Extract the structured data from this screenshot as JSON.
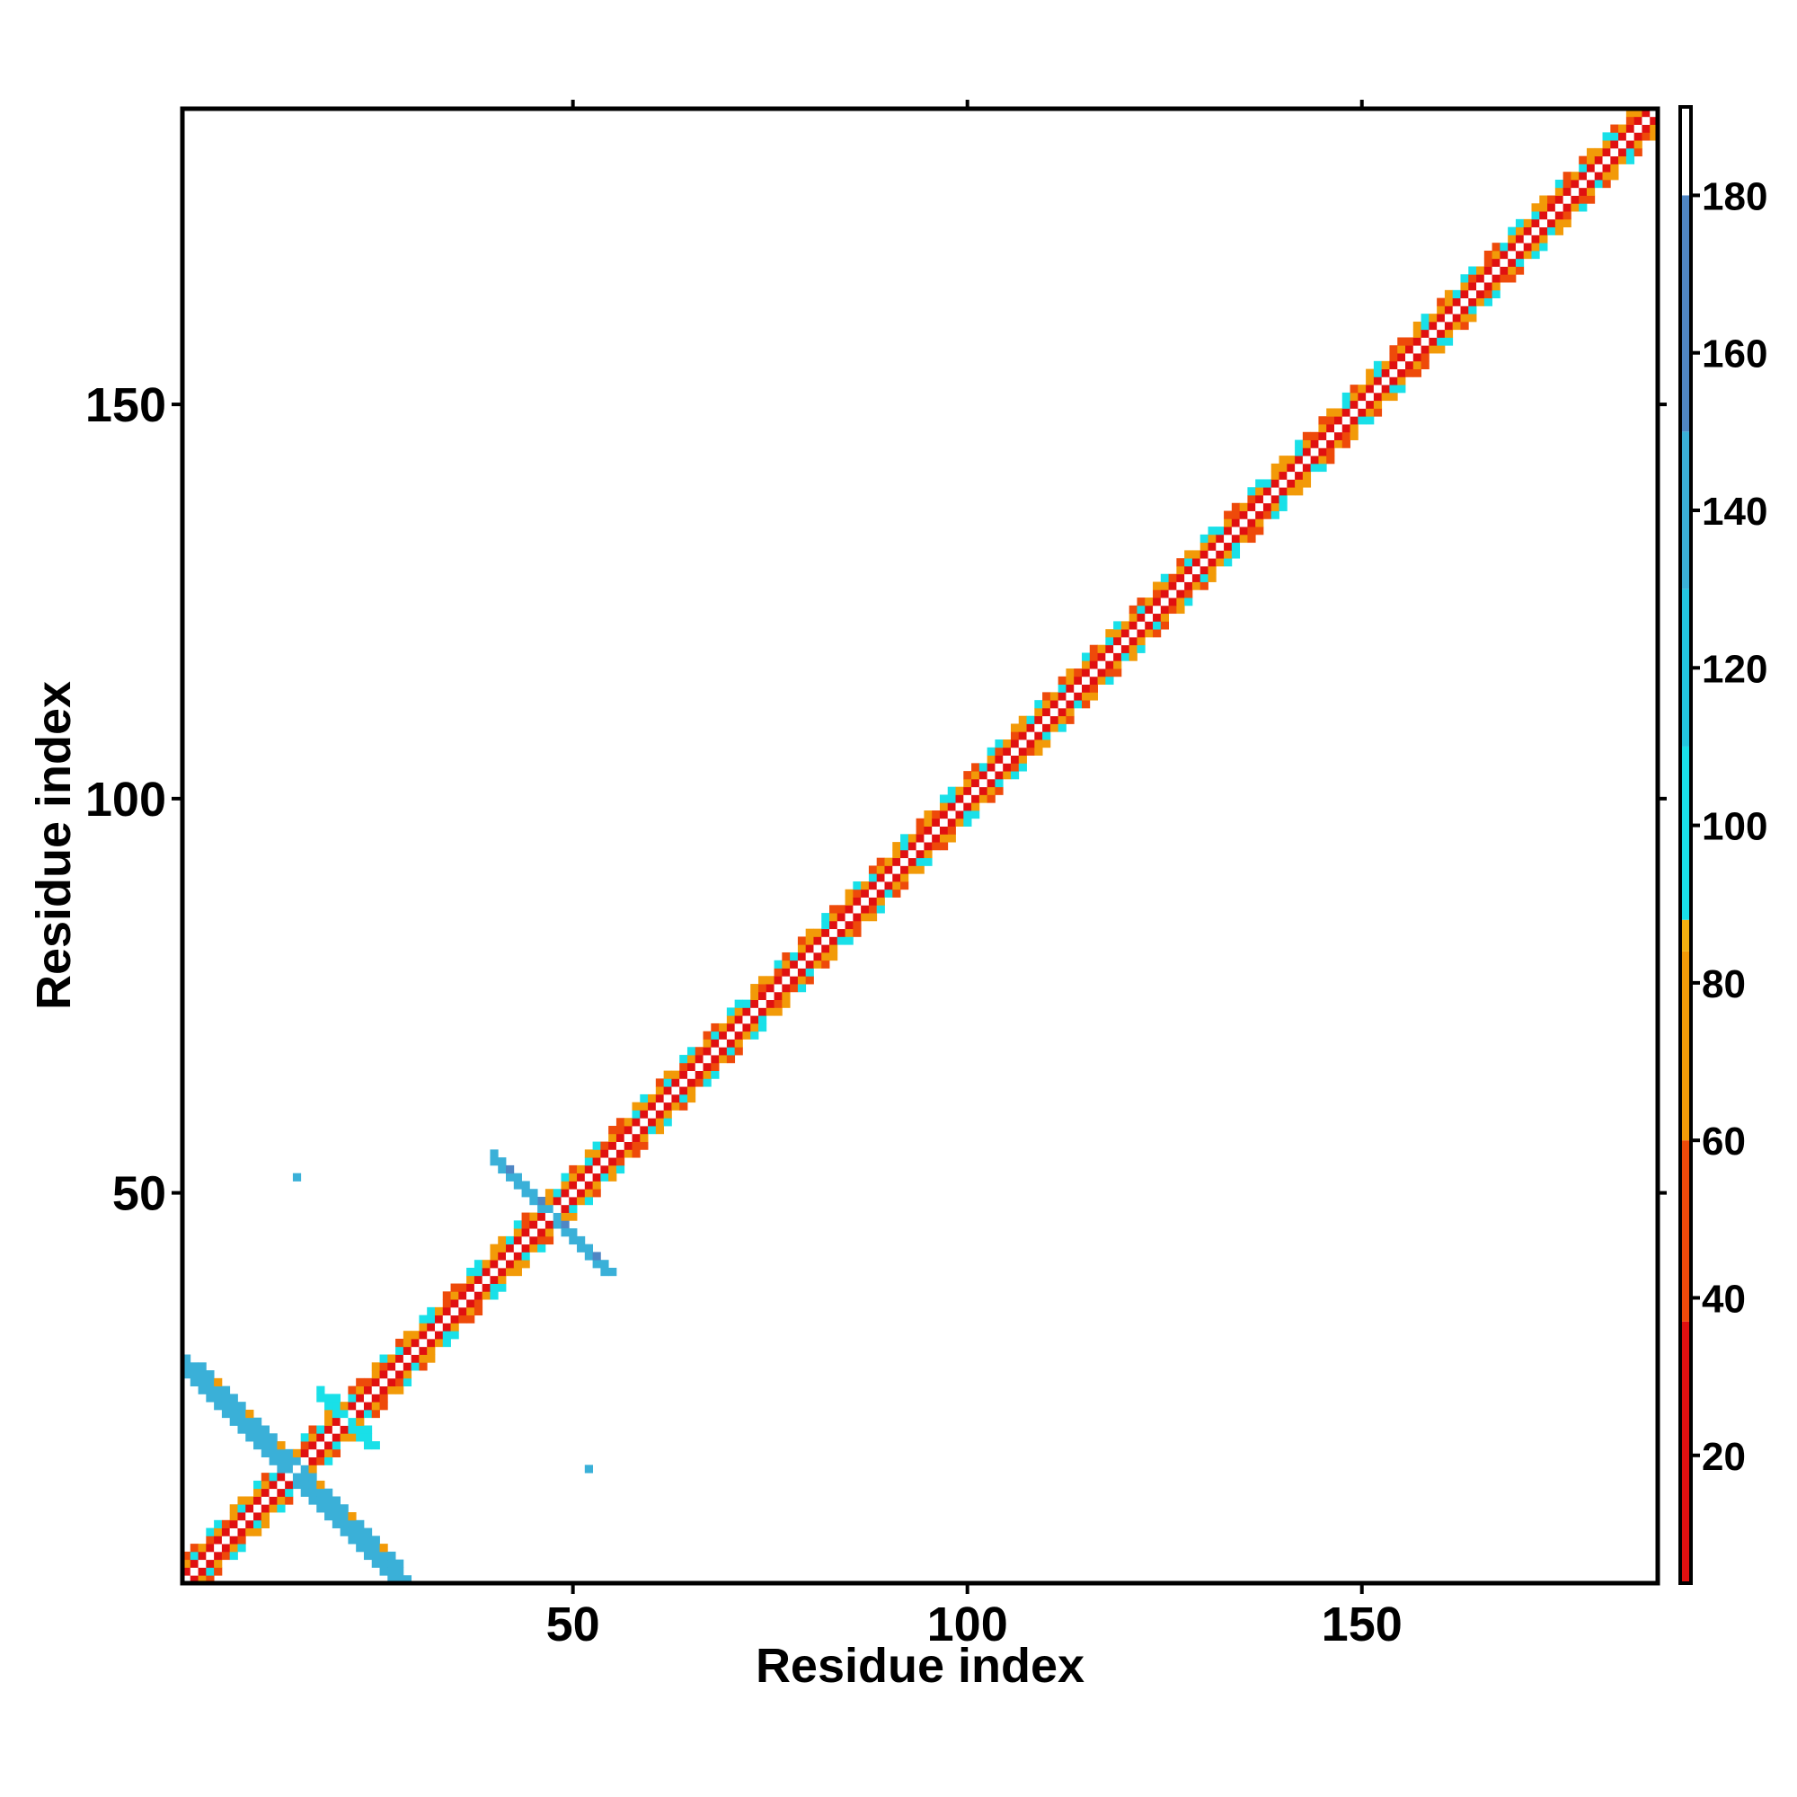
{
  "chart_data": {
    "type": "heatmap",
    "title": "",
    "xlabel": "Residue index",
    "ylabel": "Residue index",
    "xlim": [
      1,
      187
    ],
    "ylim": [
      1,
      187
    ],
    "xticks": [
      50,
      100,
      150
    ],
    "yticks": [
      50,
      100,
      150
    ],
    "grid": false,
    "colorbar": {
      "range": [
        4,
        191
      ],
      "ticks": [
        20,
        40,
        60,
        80,
        100,
        120,
        140,
        160,
        180
      ],
      "bands": [
        {
          "from": 4,
          "to": 37,
          "color": "#e01010"
        },
        {
          "from": 37,
          "to": 60,
          "color": "#ee4a0a"
        },
        {
          "from": 60,
          "to": 84,
          "color": "#f29a08"
        },
        {
          "from": 84,
          "to": 88,
          "color": "#f2b010"
        },
        {
          "from": 88,
          "to": 110,
          "color": "#19e0e8"
        },
        {
          "from": 110,
          "to": 130,
          "color": "#22c6e0"
        },
        {
          "from": 130,
          "to": 150,
          "color": "#3ab0d8"
        },
        {
          "from": 150,
          "to": 180,
          "color": "#4f86c4"
        },
        {
          "from": 180,
          "to": 191,
          "color": "#ffffff"
        }
      ]
    },
    "diagonal_value": 191,
    "band_pattern": {
      "offset1": [
        20,
        28,
        16,
        32,
        24,
        18,
        30,
        22
      ],
      "offset2": [
        65,
        72,
        60,
        78,
        95,
        68,
        102,
        74,
        58,
        70
      ],
      "offset3": [
        52,
        80,
        105,
        45,
        96,
        62,
        110,
        55,
        98,
        48,
        76
      ]
    },
    "off_diagonal_segments": [
      {
        "i_start": 1,
        "i_end": 28,
        "j_start": 27,
        "j_end": 1,
        "width": 3,
        "value": 135,
        "edge_value": 70
      },
      {
        "i_start": 40,
        "i_end": 54,
        "j_start": 54,
        "j_end": 40,
        "width": 2,
        "value": 140,
        "edge_value": 160
      },
      {
        "i_start": 18,
        "i_end": 24,
        "j_start": 24,
        "j_end": 19,
        "width": 2,
        "value": 105,
        "edge_value": 70
      }
    ],
    "isolated_points": [
      {
        "i": 15,
        "j": 52,
        "value": 140
      },
      {
        "i": 52,
        "j": 15,
        "value": 140
      }
    ]
  }
}
